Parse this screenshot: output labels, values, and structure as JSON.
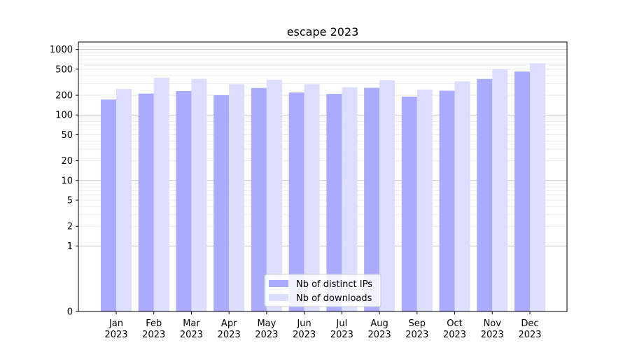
{
  "chart_data": {
    "type": "bar",
    "title": "escape 2023",
    "xlabel": "",
    "ylabel": "",
    "y_scale": "symlog",
    "ylim": [
      0,
      1300
    ],
    "y_ticks": [
      0,
      1,
      2,
      5,
      10,
      20,
      50,
      100,
      200,
      500,
      1000
    ],
    "categories": [
      "Jan\n2023",
      "Feb\n2023",
      "Mar\n2023",
      "Apr\n2023",
      "May\n2023",
      "Jun\n2023",
      "Jul\n2023",
      "Aug\n2023",
      "Sep\n2023",
      "Oct\n2023",
      "Nov\n2023",
      "Dec\n2023"
    ],
    "series": [
      {
        "name": "Nb of distinct IPs",
        "color": "#aaaaff",
        "values": [
          172,
          212,
          232,
          200,
          258,
          220,
          210,
          260,
          190,
          235,
          355,
          460
        ]
      },
      {
        "name": "Nb of downloads",
        "color": "#ddddff",
        "values": [
          250,
          370,
          355,
          295,
          345,
          295,
          265,
          340,
          245,
          325,
          500,
          615
        ]
      }
    ],
    "grid": true,
    "legend_position": "lower center"
  }
}
